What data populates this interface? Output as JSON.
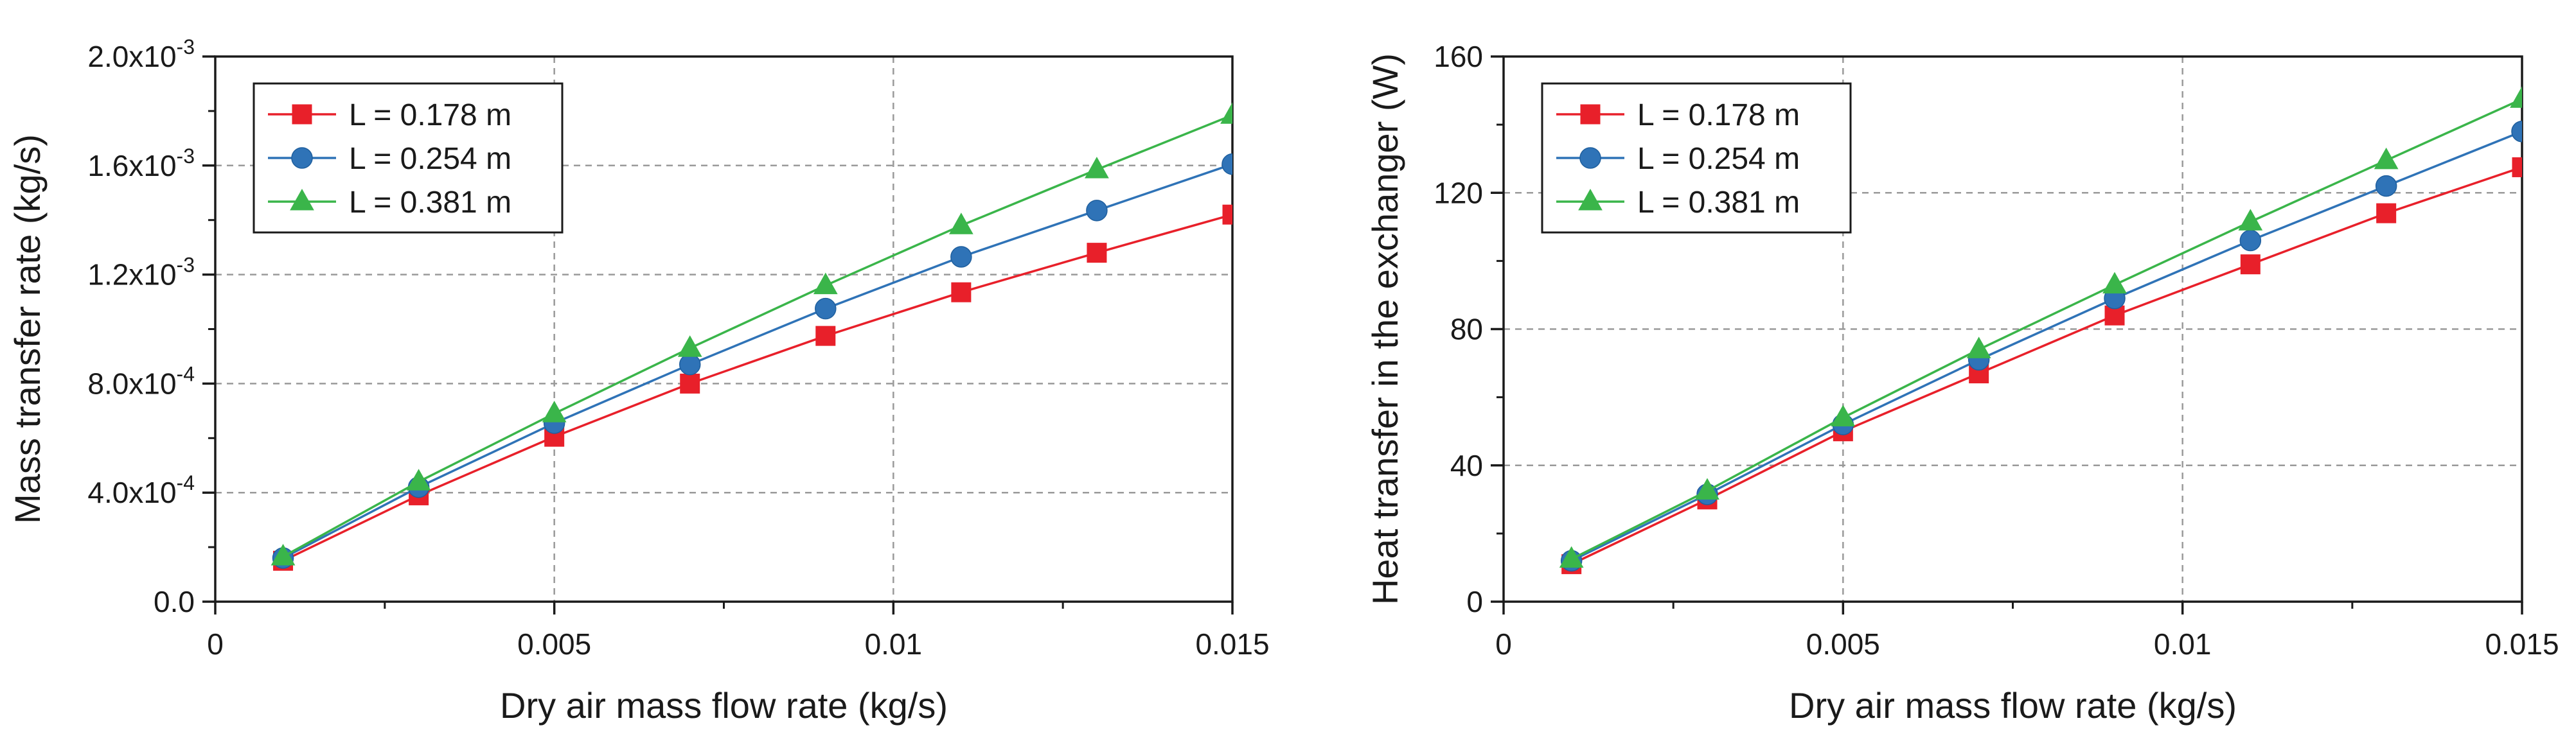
{
  "chart_data": [
    {
      "type": "line",
      "title": "",
      "xlabel": "Dry air mass flow rate (kg/s)",
      "ylabel": "Mass transfer rate (kg/s)",
      "xlim": [
        0,
        0.015
      ],
      "ylim": [
        0,
        0.002
      ],
      "grid": true,
      "legend_position": "top-left",
      "x": [
        0.001,
        0.003,
        0.005,
        0.007,
        0.009,
        0.011,
        0.013,
        0.015
      ],
      "xticks": [
        {
          "value": 0,
          "label": "0"
        },
        {
          "value": 0.005,
          "label": "0.005"
        },
        {
          "value": 0.01,
          "label": "0.01"
        },
        {
          "value": 0.015,
          "label": "0.015"
        }
      ],
      "yticks": [
        {
          "value": 0,
          "base": "0.0",
          "exp": ""
        },
        {
          "value": 0.0004,
          "base": "4.0x10",
          "exp": "-4"
        },
        {
          "value": 0.0008,
          "base": "8.0x10",
          "exp": "-4"
        },
        {
          "value": 0.0012,
          "base": "1.2x10",
          "exp": "-3"
        },
        {
          "value": 0.0016,
          "base": "1.6x10",
          "exp": "-3"
        },
        {
          "value": 0.002,
          "base": "2.0x10",
          "exp": "-3"
        }
      ],
      "series": [
        {
          "name": "L = 0.178 m",
          "color": "#e8202a",
          "marker": "square",
          "values": [
            0.00015,
            0.00039,
            0.000605,
            0.0008,
            0.000975,
            0.001135,
            0.00128,
            0.00142
          ]
        },
        {
          "name": "L = 0.254 m",
          "color": "#2f73b7",
          "marker": "circle",
          "values": [
            0.00016,
            0.00042,
            0.000655,
            0.00087,
            0.001075,
            0.001265,
            0.001435,
            0.001605
          ]
        },
        {
          "name": "L = 0.381 m",
          "color": "#3ab54a",
          "marker": "triangle",
          "values": [
            0.000165,
            0.00044,
            0.00069,
            0.00093,
            0.00116,
            0.00138,
            0.001585,
            0.001785
          ]
        }
      ]
    },
    {
      "type": "line",
      "title": "",
      "xlabel": "Dry air mass flow rate (kg/s)",
      "ylabel": "Heat transfer in the exchanger (W)",
      "xlim": [
        0,
        0.015
      ],
      "ylim": [
        0,
        160
      ],
      "grid": true,
      "legend_position": "top-left",
      "x": [
        0.001,
        0.003,
        0.005,
        0.007,
        0.009,
        0.011,
        0.013,
        0.015
      ],
      "xticks": [
        {
          "value": 0,
          "label": "0"
        },
        {
          "value": 0.005,
          "label": "0.005"
        },
        {
          "value": 0.01,
          "label": "0.01"
        },
        {
          "value": 0.015,
          "label": "0.015"
        }
      ],
      "yticks": [
        {
          "value": 0,
          "base": "0",
          "exp": ""
        },
        {
          "value": 40,
          "base": "40",
          "exp": ""
        },
        {
          "value": 80,
          "base": "80",
          "exp": ""
        },
        {
          "value": 120,
          "base": "120",
          "exp": ""
        },
        {
          "value": 160,
          "base": "160",
          "exp": ""
        }
      ],
      "series": [
        {
          "name": "L = 0.178 m",
          "color": "#e8202a",
          "marker": "square",
          "values": [
            11,
            30,
            50,
            67,
            84,
            99,
            114,
            127.5
          ]
        },
        {
          "name": "L = 0.254 m",
          "color": "#2f73b7",
          "marker": "circle",
          "values": [
            12,
            31.5,
            52,
            71,
            89,
            106,
            122,
            138
          ]
        },
        {
          "name": "L = 0.381 m",
          "color": "#3ab54a",
          "marker": "triangle",
          "values": [
            12.5,
            32.5,
            54,
            74,
            93,
            111.5,
            129.5,
            147.5
          ]
        }
      ]
    }
  ]
}
